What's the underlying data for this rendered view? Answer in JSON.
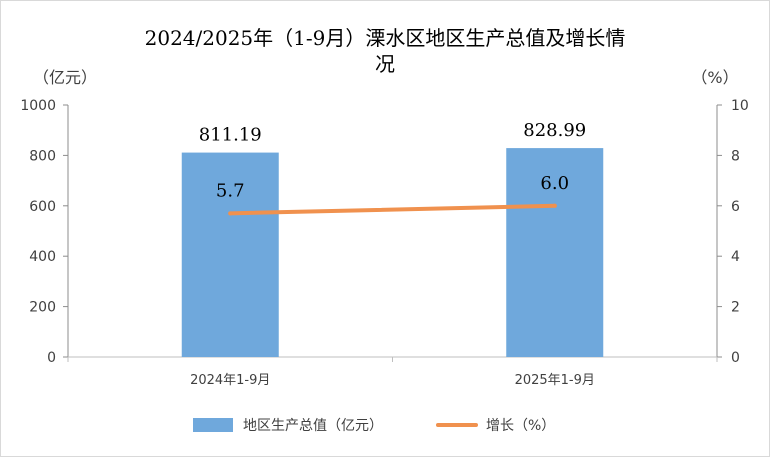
{
  "chart_data": {
    "type": "bar",
    "title_line1": "2024/2025年（1-9月）溧水区地区生产总值及增长情",
    "title_line2": "况",
    "left_unit": "（亿元）",
    "right_unit": "（%）",
    "categories": [
      "2024年1-9月",
      "2025年1-9月"
    ],
    "series": [
      {
        "name": "地区生产总值（亿元）",
        "type": "bar",
        "axis": "left",
        "values": [
          811.19,
          828.99
        ],
        "labels": [
          "811.19",
          "828.99"
        ],
        "color": "#6fa8dc"
      },
      {
        "name": "增长（%）",
        "type": "line",
        "axis": "right",
        "values": [
          5.7,
          6.0
        ],
        "labels": [
          "5.7",
          "6.0"
        ],
        "color": "#f0914e"
      }
    ],
    "ylim_left": [
      0,
      1000
    ],
    "yticks_left": [
      "0",
      "200",
      "400",
      "600",
      "800",
      "1000"
    ],
    "ylim_right": [
      0,
      10
    ],
    "yticks_right": [
      "0",
      "2",
      "4",
      "6",
      "8",
      "10"
    ],
    "grid": false,
    "legend_position": "bottom"
  }
}
